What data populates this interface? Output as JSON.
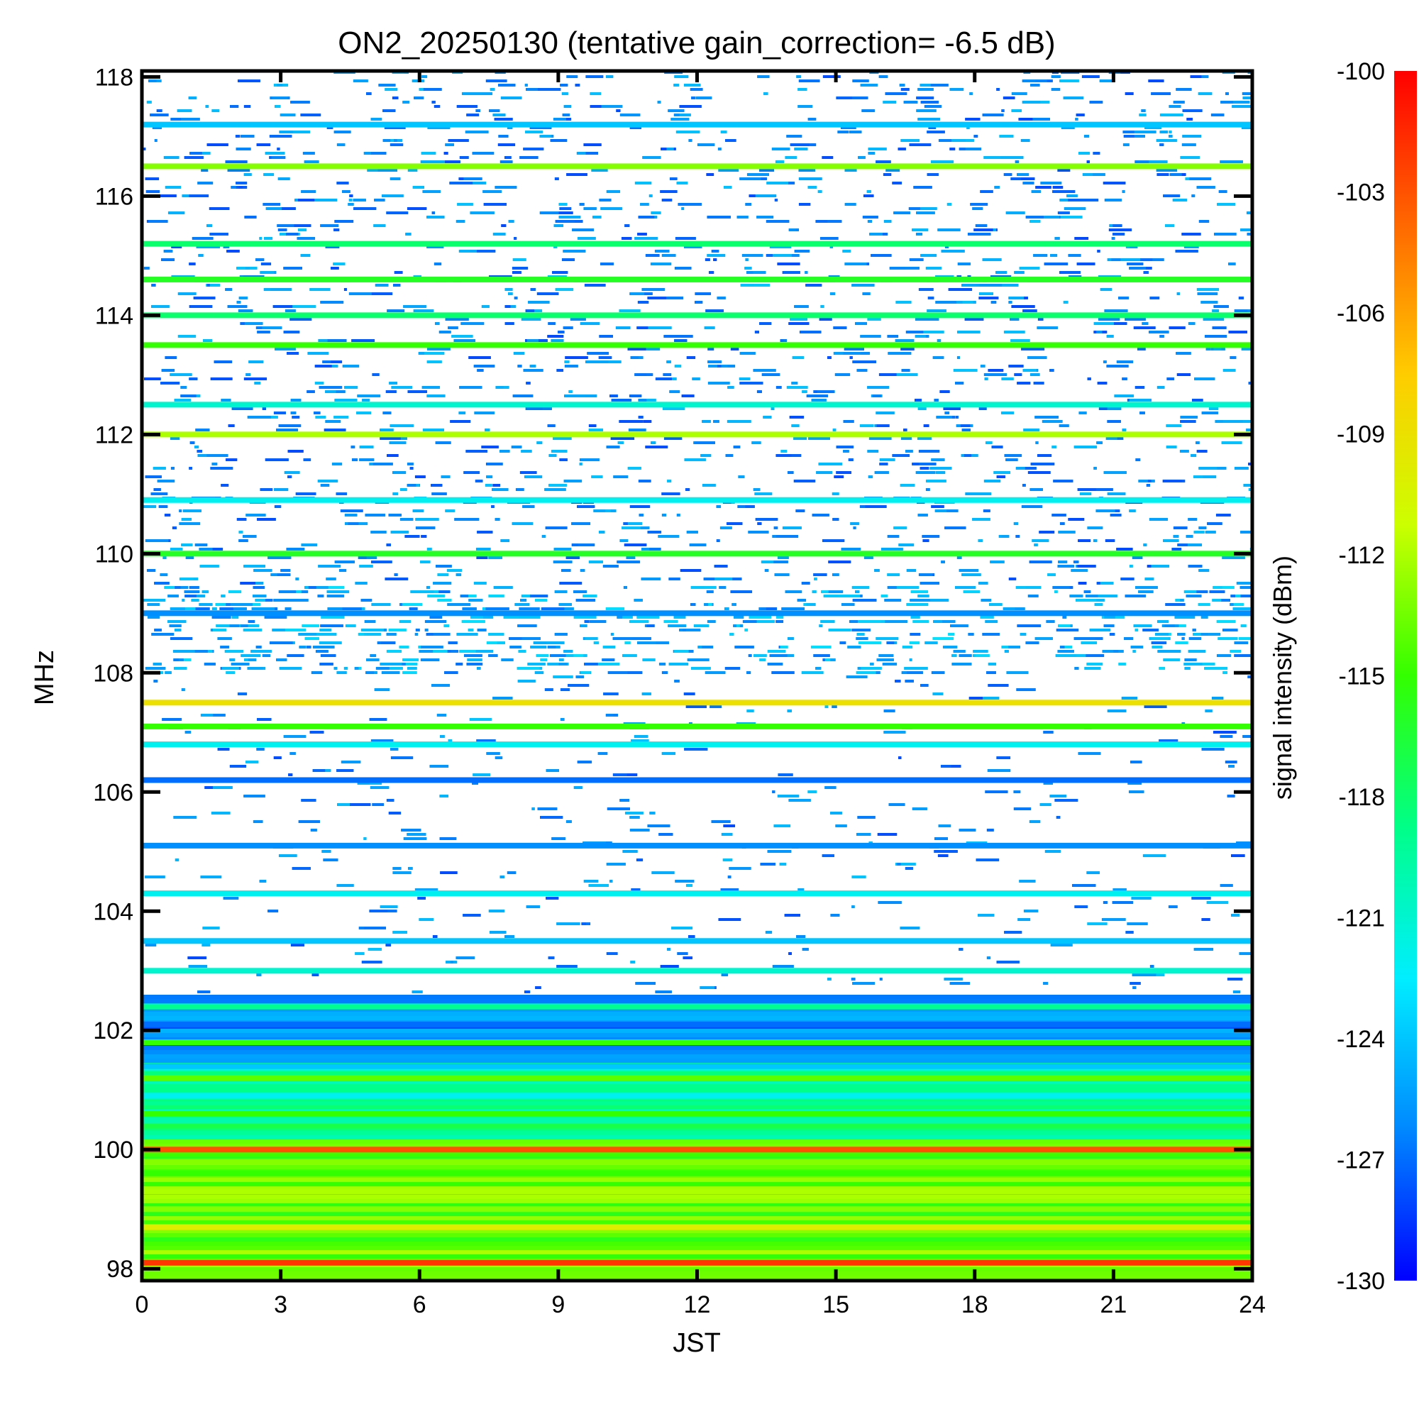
{
  "chart_data": {
    "type": "heatmap",
    "title": "ON2_20250130 (tentative gain_correction= -6.5 dB)",
    "xlabel": "JST",
    "ylabel": "MHz",
    "xlim": [
      0,
      24
    ],
    "ylim": [
      97.8,
      118.1
    ],
    "x_ticks": [
      0,
      3,
      6,
      9,
      12,
      15,
      18,
      21,
      24
    ],
    "x_tick_labels": [
      "0",
      "3",
      "6",
      "9",
      "12",
      "15",
      "18",
      "21",
      "24"
    ],
    "y_ticks": [
      98,
      100,
      102,
      104,
      106,
      108,
      110,
      112,
      114,
      116,
      118
    ],
    "y_tick_labels": [
      "98",
      "100",
      "102",
      "104",
      "106",
      "108",
      "110",
      "112",
      "114",
      "116",
      "118"
    ],
    "colorbar": {
      "label": "signal intensity (dBm)",
      "range": [
        -130,
        -100
      ],
      "ticks": [
        -100,
        -103,
        -106,
        -109,
        -112,
        -115,
        -118,
        -121,
        -124,
        -127,
        -130
      ],
      "tick_labels": [
        "-100",
        "-103",
        "-106",
        "-109",
        "-112",
        "-115",
        "-118",
        "-121",
        "-124",
        "-127",
        "-130"
      ],
      "colormap": [
        "#0000ff",
        "#0088ff",
        "#00eeff",
        "#00ff88",
        "#33ff00",
        "#ccff00",
        "#ffcc00",
        "#ff6600",
        "#ff0000"
      ]
    },
    "bands": [
      {
        "freq": 98.1,
        "level": -102
      },
      {
        "freq": 98.7,
        "level": -110
      },
      {
        "freq": 99.0,
        "level": -113
      },
      {
        "freq": 99.3,
        "level": -112
      },
      {
        "freq": 99.6,
        "level": -115
      },
      {
        "freq": 99.8,
        "level": -113
      },
      {
        "freq": 100.0,
        "level": -103
      },
      {
        "freq": 100.4,
        "level": -117
      },
      {
        "freq": 100.6,
        "level": -115
      },
      {
        "freq": 100.9,
        "level": -122
      },
      {
        "freq": 101.2,
        "level": -114
      },
      {
        "freq": 101.4,
        "level": -124
      },
      {
        "freq": 101.8,
        "level": -115
      },
      {
        "freq": 102.1,
        "level": -127
      },
      {
        "freq": 102.4,
        "level": -119
      },
      {
        "freq": 103.0,
        "level": -121
      },
      {
        "freq": 103.5,
        "level": -124
      },
      {
        "freq": 104.3,
        "level": -122
      },
      {
        "freq": 105.1,
        "level": -126
      },
      {
        "freq": 106.2,
        "level": -127
      },
      {
        "freq": 106.8,
        "level": -122
      },
      {
        "freq": 107.1,
        "level": -115
      },
      {
        "freq": 107.5,
        "level": -109
      },
      {
        "freq": 109.0,
        "level": -126
      },
      {
        "freq": 110.0,
        "level": -116
      },
      {
        "freq": 110.9,
        "level": -122
      },
      {
        "freq": 112.0,
        "level": -112
      },
      {
        "freq": 112.5,
        "level": -121
      },
      {
        "freq": 113.5,
        "level": -115
      },
      {
        "freq": 114.0,
        "level": -118
      },
      {
        "freq": 114.6,
        "level": -116
      },
      {
        "freq": 115.2,
        "level": -118
      },
      {
        "freq": 116.5,
        "level": -113
      },
      {
        "freq": 117.2,
        "level": -124
      }
    ]
  }
}
